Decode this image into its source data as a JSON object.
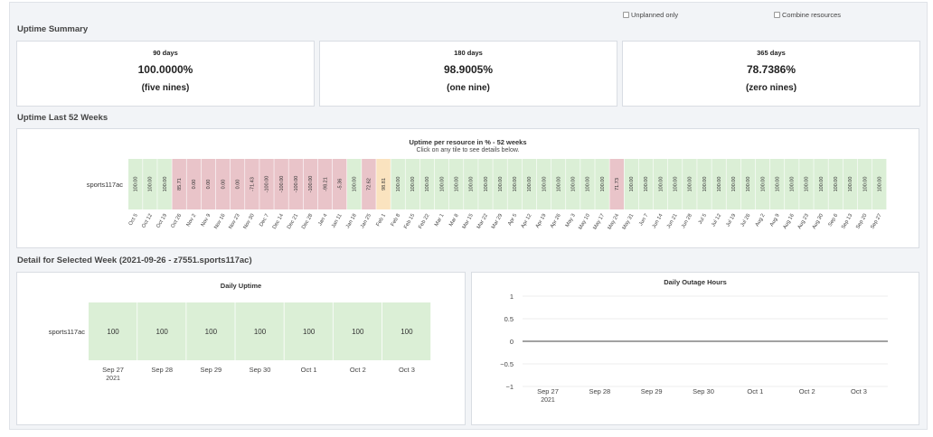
{
  "filters": {
    "unplanned_label": "Unplanned only",
    "combine_label": "Combine resources"
  },
  "summary": {
    "title": "Uptime Summary",
    "cards": [
      {
        "period": "90 days",
        "pct": "100.0000%",
        "nines": "(five nines)"
      },
      {
        "period": "180 days",
        "pct": "98.9005%",
        "nines": "(one nine)"
      },
      {
        "period": "365 days",
        "pct": "78.7386%",
        "nines": "(zero nines)"
      }
    ]
  },
  "weeks52": {
    "section_title": "Uptime Last 52 Weeks",
    "chart_title": "Uptime per resource in % - 52 weeks",
    "chart_subtitle": "Click on any tile to see details below.",
    "resource": "sports117ac"
  },
  "detail": {
    "section_title": "Detail for Selected Week (2021-09-26 - z7551.sports117ac)",
    "daily_uptime_title": "Daily Uptime",
    "daily_outage_title": "Daily Outage Hours",
    "resource": "sports117ac"
  },
  "colors": {
    "green": "#dbefd6",
    "red": "#e9c4c9",
    "orange": "#fae3bf",
    "zero_line": "#444444",
    "grid": "#eeeeee"
  },
  "chart_data": [
    {
      "type": "heatmap",
      "title": "Uptime per resource in % - 52 weeks",
      "subtitle": "Click on any tile to see details below.",
      "y_categories": [
        "sports117ac"
      ],
      "x_categories": [
        "Oct 5",
        "Oct 12",
        "Oct 19",
        "Oct 26",
        "Nov 2",
        "Nov 9",
        "Nov 16",
        "Nov 23",
        "Nov 30",
        "Dec 7",
        "Dec 14",
        "Dec 21",
        "Dec 28",
        "Jan 4",
        "Jan 11",
        "Jan 18",
        "Jan 25",
        "Feb 1",
        "Feb 8",
        "Feb 15",
        "Feb 22",
        "Mar 1",
        "Mar 8",
        "Mar 15",
        "Mar 22",
        "Mar 29",
        "Apr 5",
        "Apr 12",
        "Apr 19",
        "Apr 26",
        "May 3",
        "May 10",
        "May 17",
        "May 24",
        "May 31",
        "Jun 7",
        "Jun 14",
        "Jun 21",
        "Jun 28",
        "Jul 5",
        "Jul 12",
        "Jul 19",
        "Jul 26",
        "Aug 2",
        "Aug 9",
        "Aug 16",
        "Aug 23",
        "Aug 30",
        "Sep 6",
        "Sep 13",
        "Sep 20",
        "Sep 27"
      ],
      "values": [
        100.0,
        100.0,
        100.0,
        85.71,
        0.0,
        0.0,
        0.0,
        0.0,
        -71.43,
        -100.0,
        -100.0,
        -100.0,
        -100.0,
        -98.21,
        -5.36,
        100.0,
        72.62,
        98.81,
        100.0,
        100.0,
        100.0,
        100.0,
        100.0,
        100.0,
        100.0,
        100.0,
        100.0,
        100.0,
        100.0,
        100.0,
        100.0,
        100.0,
        100.0,
        71.73,
        100.0,
        100.0,
        100.0,
        100.0,
        100.0,
        100.0,
        100.0,
        100.0,
        100.0,
        100.0,
        100.0,
        100.0,
        100.0,
        100.0,
        100.0,
        100.0,
        100.0,
        100.0
      ],
      "labels": [
        "100.00",
        "100.00",
        "100.00",
        "85.71",
        "0.00",
        "0.00",
        "0.00",
        "0.00",
        "-71.43",
        "-100.00",
        "-100.00",
        "-100.00",
        "-100.00",
        "-98.21",
        "-5.36",
        "100.00",
        "72.62",
        "98.81",
        "100.00",
        "100.00",
        "100.00",
        "100.00",
        "100.00",
        "100.00",
        "100.00",
        "100.00",
        "100.00",
        "100.00",
        "100.00",
        "100.00",
        "100.00",
        "100.00",
        "100.00",
        "71.73",
        "100.00",
        "100.00",
        "100.00",
        "100.00",
        "100.00",
        "100.00",
        "100.00",
        "100.00",
        "100.00",
        "100.00",
        "100.00",
        "100.00",
        "100.00",
        "100.00",
        "100.00",
        "100.00",
        "100.00",
        "100.00"
      ],
      "cell_colors": [
        "green",
        "green",
        "green",
        "red",
        "red",
        "red",
        "red",
        "red",
        "red",
        "red",
        "red",
        "red",
        "red",
        "red",
        "red",
        "green",
        "red",
        "orange",
        "green",
        "green",
        "green",
        "green",
        "green",
        "green",
        "green",
        "green",
        "green",
        "green",
        "green",
        "green",
        "green",
        "green",
        "green",
        "red",
        "green",
        "green",
        "green",
        "green",
        "green",
        "green",
        "green",
        "green",
        "green",
        "green",
        "green",
        "green",
        "green",
        "green",
        "green",
        "green",
        "green",
        "green"
      ]
    },
    {
      "type": "heatmap",
      "title": "Daily Uptime",
      "y_categories": [
        "sports117ac"
      ],
      "x_categories": [
        "Sep 27",
        "Sep 28",
        "Sep 29",
        "Sep 30",
        "Oct 1",
        "Oct 2",
        "Oct 3"
      ],
      "x_year_label": "2021",
      "values": [
        100,
        100,
        100,
        100,
        100,
        100,
        100
      ]
    },
    {
      "type": "line",
      "title": "Daily Outage Hours",
      "x": [
        "Sep 27",
        "Sep 28",
        "Sep 29",
        "Sep 30",
        "Oct 1",
        "Oct 2",
        "Oct 3"
      ],
      "x_year_label": "2021",
      "series": [
        {
          "values": [
            0,
            0,
            0,
            0,
            0,
            0,
            0
          ]
        }
      ],
      "ylim": [
        -1,
        1
      ],
      "yticks": [
        "1",
        "0.5",
        "0",
        "−0.5",
        "−1"
      ],
      "grid": true
    }
  ]
}
